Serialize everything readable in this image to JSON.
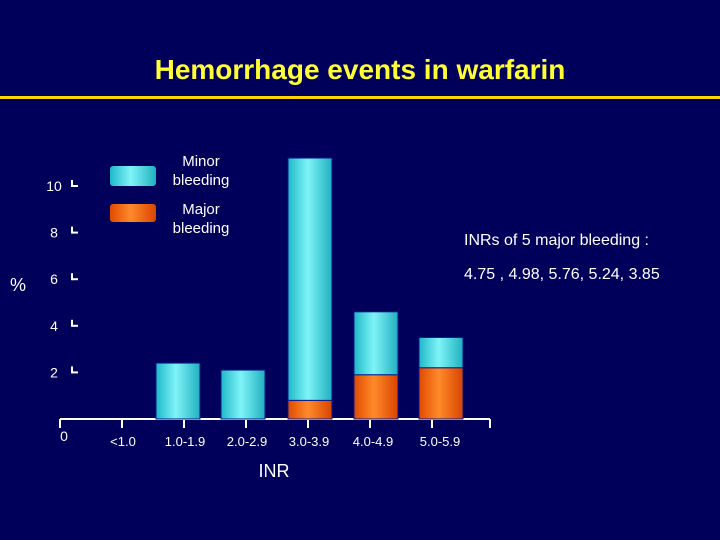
{
  "title": "Hemorrhage events in warfarin",
  "note": {
    "line1": "INRs  of 5 major bleeding :",
    "line2": "4.75 , 4.98, 5.76, 5.24, 3.85"
  },
  "legend": {
    "minor": "Minor bleeding",
    "major": "Major bleeding"
  },
  "colors": {
    "background": "#00005a",
    "title": "#ffff33",
    "minor": "#3fe0e8",
    "major": "#f06010"
  },
  "chart_data": {
    "type": "bar",
    "stacked": true,
    "xlabel": "INR",
    "ylabel": "%",
    "categories": [
      "<1.0",
      "1.0-1.9",
      "2.0-2.9",
      "3.0-3.9",
      "4.0-4.9",
      "5.0-5.9"
    ],
    "series": [
      {
        "name": "Major bleeding",
        "values": [
          0,
          0,
          0,
          0.8,
          1.9,
          2.2
        ]
      },
      {
        "name": "Minor bleeding",
        "values": [
          0,
          2.4,
          2.1,
          10.4,
          2.7,
          1.3
        ]
      }
    ],
    "yticks": [
      0,
      2,
      4,
      6,
      8,
      10
    ],
    "ylim": [
      0,
      11
    ]
  }
}
